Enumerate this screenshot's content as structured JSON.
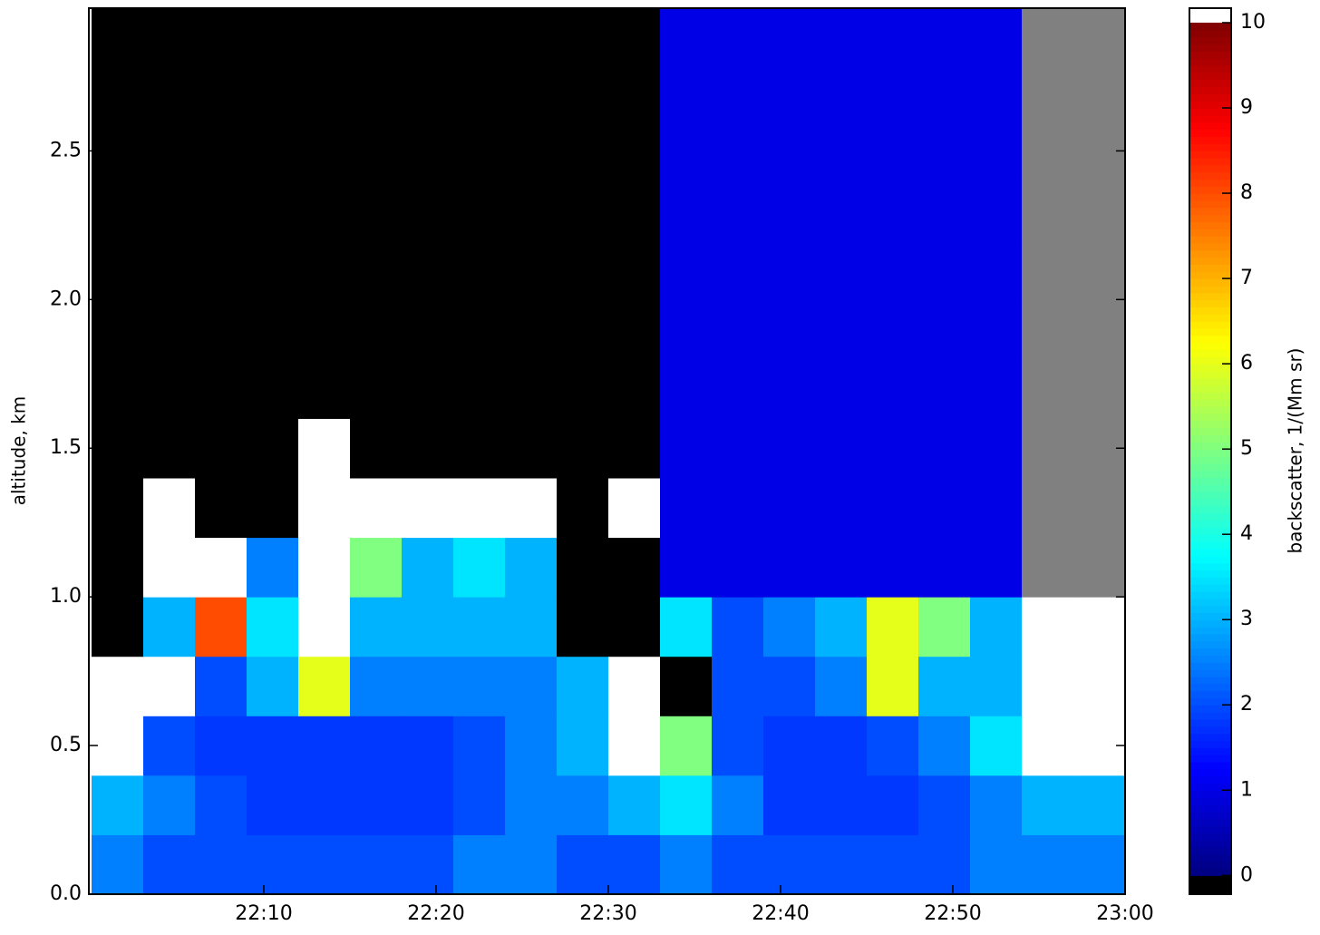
{
  "chart_data": {
    "type": "heatmap",
    "colormap": "jet",
    "under_color": "#000000",
    "over_color": "#ffffff",
    "nan_color": "#808080",
    "y_label": "altitude, km",
    "x_edges": [
      "22:00",
      "22:03",
      "22:06",
      "22:09",
      "22:12",
      "22:15",
      "22:18",
      "22:21",
      "22:24",
      "22:27",
      "22:30",
      "22:33",
      "22:36",
      "22:39",
      "22:42",
      "22:45",
      "22:48",
      "22:51",
      "22:54",
      "22:57",
      "23:00"
    ],
    "y_edges": [
      0,
      0.2,
      0.4,
      0.6,
      0.8,
      1,
      1.2,
      1.4,
      1.6,
      1.8,
      2,
      2.2,
      2.4,
      2.6,
      2.8,
      3
    ],
    "z": [
      [
        2.5,
        2,
        2,
        2,
        2,
        2,
        2,
        2.5,
        2.5,
        2,
        2,
        2.5,
        2,
        2,
        2,
        2,
        2,
        2.5,
        2.5,
        2.5
      ],
      [
        3,
        2.5,
        2,
        1.8,
        1.8,
        1.8,
        1.8,
        2,
        2.5,
        2.5,
        3,
        3.5,
        2.5,
        1.8,
        1.8,
        1.8,
        2,
        2.5,
        3,
        3
      ],
      [
        12,
        2,
        1.8,
        1.8,
        1.8,
        1.8,
        1.8,
        2,
        2.5,
        3,
        12,
        5,
        2,
        1.8,
        1.8,
        2,
        2.5,
        3.5,
        12,
        12
      ],
      [
        12,
        12,
        2,
        3,
        6,
        2.5,
        2.5,
        2.5,
        2.5,
        3,
        12,
        -0.5,
        2,
        2,
        2.5,
        6,
        3,
        3,
        12,
        12
      ],
      [
        -0.5,
        3,
        8,
        3.5,
        12,
        3,
        3,
        3,
        3,
        -0.5,
        -0.5,
        3.5,
        2,
        2.5,
        3,
        6,
        5,
        3,
        12,
        12
      ],
      [
        -0.5,
        12,
        12,
        2.5,
        12,
        5,
        3,
        3.5,
        3,
        -0.5,
        -0.5,
        1,
        1,
        1,
        1,
        1,
        1,
        1,
        null,
        null
      ],
      [
        -0.5,
        12,
        -0.5,
        -0.5,
        12,
        12,
        12,
        12,
        12,
        -0.5,
        12,
        1,
        1,
        1,
        1,
        1,
        1,
        1,
        null,
        null
      ],
      [
        -0.5,
        -0.5,
        -0.5,
        -0.5,
        12,
        -0.5,
        -0.5,
        -0.5,
        -0.5,
        -0.5,
        -0.5,
        1,
        1,
        1,
        1,
        1,
        1,
        1,
        null,
        null
      ],
      [
        -0.5,
        -0.5,
        -0.5,
        -0.5,
        -0.5,
        -0.5,
        -0.5,
        -0.5,
        -0.5,
        -0.5,
        -0.5,
        1,
        1,
        1,
        1,
        1,
        1,
        1,
        null,
        null
      ],
      [
        -0.5,
        -0.5,
        -0.5,
        -0.5,
        -0.5,
        -0.5,
        -0.5,
        -0.5,
        -0.5,
        -0.5,
        -0.5,
        1,
        1,
        1,
        1,
        1,
        1,
        1,
        null,
        null
      ],
      [
        -0.5,
        -0.5,
        -0.5,
        -0.5,
        -0.5,
        -0.5,
        -0.5,
        -0.5,
        -0.5,
        -0.5,
        -0.5,
        1,
        1,
        1,
        1,
        1,
        1,
        1,
        null,
        null
      ],
      [
        -0.5,
        -0.5,
        -0.5,
        -0.5,
        -0.5,
        -0.5,
        -0.5,
        -0.5,
        -0.5,
        -0.5,
        -0.5,
        1,
        1,
        1,
        1,
        1,
        1,
        1,
        null,
        null
      ],
      [
        -0.5,
        -0.5,
        -0.5,
        -0.5,
        -0.5,
        -0.5,
        -0.5,
        -0.5,
        -0.5,
        -0.5,
        -0.5,
        1,
        1,
        1,
        1,
        1,
        1,
        1,
        null,
        null
      ],
      [
        -0.5,
        -0.5,
        -0.5,
        -0.5,
        -0.5,
        -0.5,
        -0.5,
        -0.5,
        -0.5,
        -0.5,
        -0.5,
        1,
        1,
        1,
        1,
        1,
        1,
        1,
        null,
        null
      ],
      [
        -0.5,
        -0.5,
        -0.5,
        -0.5,
        -0.5,
        -0.5,
        -0.5,
        -0.5,
        -0.5,
        -0.5,
        -0.5,
        1,
        1,
        1,
        1,
        1,
        1,
        1,
        null,
        null
      ]
    ],
    "xlim": [
      "22:00",
      "23:00"
    ],
    "xticks": [
      "22:10",
      "22:20",
      "22:30",
      "22:40",
      "22:50",
      "23:00"
    ],
    "ylim": [
      0,
      2.98
    ],
    "yticks": [
      {
        "value": 0,
        "label": "0.0"
      },
      0.5,
      {
        "value": 1,
        "label": "1.0"
      },
      1.5,
      {
        "value": 2,
        "label": "2.0"
      },
      2.5
    ],
    "colorbar": {
      "label": "backscatter, 1/(Mm sr)",
      "lim": [
        -0.22,
        10.17
      ],
      "ticks": [
        0,
        1,
        2,
        3,
        4,
        5,
        6,
        7,
        8,
        9,
        10
      ]
    }
  }
}
